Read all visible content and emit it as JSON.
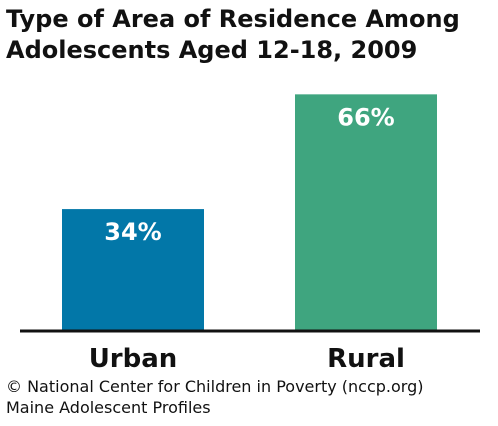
{
  "chart_data": {
    "type": "bar",
    "title_lines": [
      "Type of Area of Residence Among",
      "Adolescents Aged 12-18, 2009"
    ],
    "categories": [
      "Urban",
      "Rural"
    ],
    "values": [
      34,
      66
    ],
    "value_labels": [
      "34%",
      "66%"
    ],
    "colors": [
      "#0277a8",
      "#3fa57f"
    ],
    "ylim": [
      0,
      70
    ],
    "grid": false,
    "legend": "none",
    "xlabel": "",
    "ylabel": ""
  },
  "footer": {
    "line1": "© National Center for Children in Poverty (nccp.org)",
    "line2": "Maine Adolescent Profiles"
  }
}
